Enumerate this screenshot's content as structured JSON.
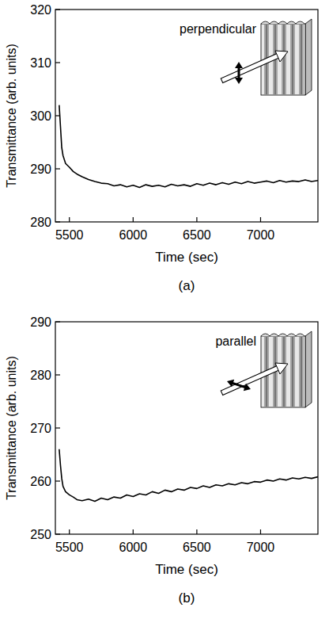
{
  "chart_data": [
    {
      "type": "line",
      "color": "#000000",
      "line_style": "solid",
      "y_label": "Transmittance (arb. units)",
      "x_label": "Time (sec)",
      "annotation": "perpendicular",
      "panel_label": "(a)",
      "xlim": [
        5390,
        7450
      ],
      "xticks": [
        5500,
        6000,
        6500,
        7000
      ],
      "ylim": [
        280,
        320
      ],
      "yticks": [
        280,
        290,
        300,
        310,
        320
      ],
      "x": [
        5420,
        5430,
        5440,
        5450,
        5470,
        5500,
        5530,
        5560,
        5600,
        5650,
        5700,
        5750,
        5800,
        5850,
        5900,
        5950,
        6000,
        6050,
        6100,
        6150,
        6200,
        6250,
        6300,
        6350,
        6400,
        6450,
        6500,
        6550,
        6600,
        6650,
        6700,
        6750,
        6800,
        6850,
        6900,
        6950,
        7000,
        7050,
        7100,
        7150,
        7200,
        7250,
        7300,
        7350,
        7400,
        7450
      ],
      "values": [
        302,
        298,
        294,
        292.5,
        291,
        290.3,
        289.5,
        289,
        288.5,
        288,
        287.6,
        287.3,
        287.2,
        286.8,
        287,
        286.6,
        286.9,
        286.5,
        287,
        286.7,
        286.9,
        286.6,
        287.1,
        286.8,
        287,
        286.7,
        287.2,
        286.9,
        287.3,
        287,
        287.4,
        287.1,
        287.5,
        287.2,
        287.6,
        287.3,
        287.5,
        287.7,
        287.4,
        287.8,
        287.5,
        287.7,
        287.6,
        287.9,
        287.6,
        287.8
      ]
    },
    {
      "type": "line",
      "color": "#000000",
      "line_style": "solid",
      "y_label": "Transmittance (arb. units)",
      "x_label": "Time (sec)",
      "annotation": "parallel",
      "panel_label": "(b)",
      "xlim": [
        5390,
        7450
      ],
      "xticks": [
        5500,
        6000,
        6500,
        7000
      ],
      "ylim": [
        250,
        290
      ],
      "yticks": [
        250,
        260,
        270,
        280,
        290
      ],
      "x": [
        5420,
        5430,
        5440,
        5450,
        5470,
        5500,
        5530,
        5560,
        5600,
        5650,
        5700,
        5750,
        5800,
        5850,
        5900,
        5950,
        6000,
        6050,
        6100,
        6150,
        6200,
        6250,
        6300,
        6350,
        6400,
        6450,
        6500,
        6550,
        6600,
        6650,
        6700,
        6750,
        6800,
        6850,
        6900,
        6950,
        7000,
        7050,
        7100,
        7150,
        7200,
        7250,
        7300,
        7350,
        7400,
        7450
      ],
      "values": [
        266,
        263,
        260.5,
        259,
        258,
        257.4,
        257,
        256.5,
        256.3,
        256.6,
        256.2,
        256.8,
        256.5,
        257,
        256.8,
        257.4,
        257.1,
        257.6,
        257.4,
        258,
        257.7,
        258.3,
        258,
        258.5,
        258.3,
        258.8,
        258.6,
        259.1,
        258.8,
        259.3,
        259.1,
        259.5,
        259.3,
        259.7,
        259.5,
        259.9,
        259.8,
        260.2,
        260,
        260.4,
        260.2,
        260.6,
        260.4,
        260.7,
        260.5,
        260.8
      ]
    }
  ]
}
